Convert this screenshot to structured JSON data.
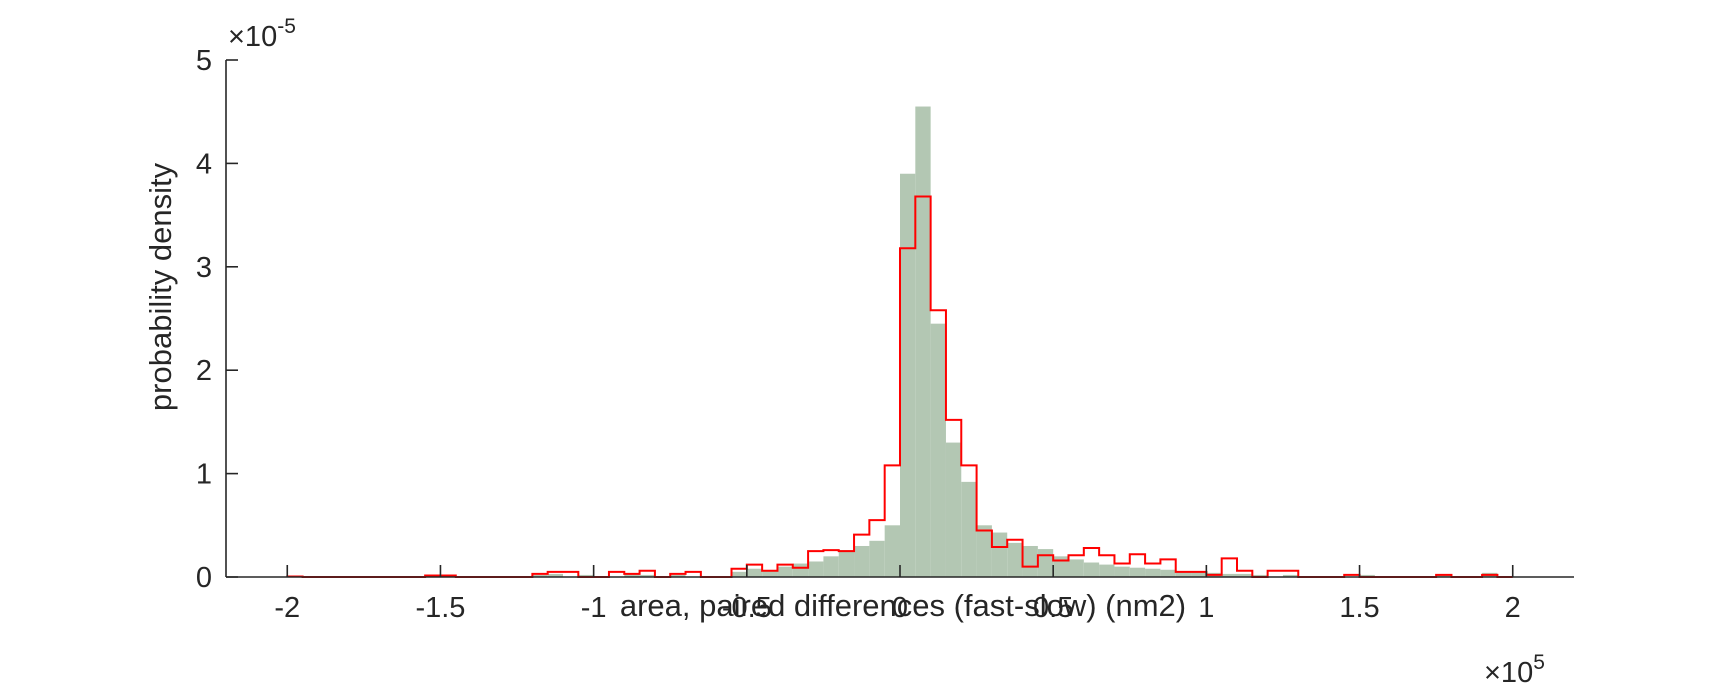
{
  "chart_data": {
    "type": "histogram",
    "xlabel": "area, paired differences (fast-slow) (nm2)",
    "ylabel": "probability density",
    "x_multiplier_base": "×10",
    "x_multiplier_exp": "5",
    "y_multiplier_base": "×10",
    "y_multiplier_exp": "-5",
    "x_scale": 100000,
    "y_scale": 1e-05,
    "xlim": [
      -2.2,
      2.2
    ],
    "ylim": [
      0,
      5
    ],
    "xticks": [
      -2,
      -1.5,
      -1,
      -0.5,
      0,
      0.5,
      1,
      1.5,
      2
    ],
    "xtick_labels": [
      "-2",
      "-1.5",
      "-1",
      "-0.5",
      "0",
      "0.5",
      "1",
      "1.5",
      "2"
    ],
    "yticks": [
      0,
      1,
      2,
      3,
      4,
      5
    ],
    "ytick_labels": [
      "0",
      "1",
      "2",
      "3",
      "4",
      "5"
    ],
    "bin_width": 0.05,
    "grid": false,
    "colors": {
      "bar_fill": "#b3c7b3",
      "step_line": "#ff0000",
      "axis": "#262626"
    },
    "series": [
      {
        "style": "filled-bars",
        "bins": [
          [
            -1.55,
            0.02
          ],
          [
            -1.2,
            0.02
          ],
          [
            -1.15,
            0.03
          ],
          [
            -1.05,
            0.02
          ],
          [
            -0.9,
            0.03
          ],
          [
            -0.85,
            0.02
          ],
          [
            -0.75,
            0.02
          ],
          [
            -0.55,
            0.05
          ],
          [
            -0.5,
            0.08
          ],
          [
            -0.45,
            0.06
          ],
          [
            -0.4,
            0.1
          ],
          [
            -0.35,
            0.13
          ],
          [
            -0.3,
            0.15
          ],
          [
            -0.25,
            0.2
          ],
          [
            -0.2,
            0.26
          ],
          [
            -0.15,
            0.3
          ],
          [
            -0.1,
            0.35
          ],
          [
            -0.05,
            0.5
          ],
          [
            0.0,
            3.9
          ],
          [
            0.05,
            4.55
          ],
          [
            0.1,
            2.45
          ],
          [
            0.15,
            1.3
          ],
          [
            0.2,
            0.92
          ],
          [
            0.25,
            0.5
          ],
          [
            0.3,
            0.43
          ],
          [
            0.35,
            0.33
          ],
          [
            0.4,
            0.3
          ],
          [
            0.45,
            0.27
          ],
          [
            0.5,
            0.2
          ],
          [
            0.55,
            0.17
          ],
          [
            0.6,
            0.14
          ],
          [
            0.65,
            0.12
          ],
          [
            0.7,
            0.1
          ],
          [
            0.75,
            0.09
          ],
          [
            0.8,
            0.08
          ],
          [
            0.85,
            0.07
          ],
          [
            0.9,
            0.05
          ],
          [
            0.95,
            0.05
          ],
          [
            1.0,
            0.04
          ],
          [
            1.05,
            0.03
          ],
          [
            1.1,
            0.03
          ],
          [
            1.15,
            0.02
          ],
          [
            1.25,
            0.02
          ],
          [
            1.5,
            0.02
          ],
          [
            1.75,
            0.02
          ],
          [
            1.9,
            0.04
          ]
        ]
      },
      {
        "style": "step-outline",
        "bins": [
          [
            -2.0,
            0.005
          ],
          [
            -1.55,
            0.015
          ],
          [
            -1.5,
            0.015
          ],
          [
            -1.2,
            0.03
          ],
          [
            -1.15,
            0.05
          ],
          [
            -1.1,
            0.05
          ],
          [
            -1.05,
            0.0
          ],
          [
            -0.95,
            0.05
          ],
          [
            -0.9,
            0.03
          ],
          [
            -0.85,
            0.06
          ],
          [
            -0.8,
            0.0
          ],
          [
            -0.75,
            0.03
          ],
          [
            -0.7,
            0.05
          ],
          [
            -0.55,
            0.08
          ],
          [
            -0.5,
            0.12
          ],
          [
            -0.45,
            0.06
          ],
          [
            -0.4,
            0.12
          ],
          [
            -0.35,
            0.09
          ],
          [
            -0.3,
            0.25
          ],
          [
            -0.25,
            0.26
          ],
          [
            -0.2,
            0.25
          ],
          [
            -0.15,
            0.41
          ],
          [
            -0.1,
            0.55
          ],
          [
            -0.05,
            1.08
          ],
          [
            0.0,
            3.18
          ],
          [
            0.05,
            3.68
          ],
          [
            0.1,
            2.58
          ],
          [
            0.15,
            1.52
          ],
          [
            0.2,
            1.08
          ],
          [
            0.25,
            0.45
          ],
          [
            0.3,
            0.29
          ],
          [
            0.35,
            0.36
          ],
          [
            0.4,
            0.1
          ],
          [
            0.45,
            0.21
          ],
          [
            0.5,
            0.16
          ],
          [
            0.55,
            0.21
          ],
          [
            0.6,
            0.28
          ],
          [
            0.65,
            0.21
          ],
          [
            0.7,
            0.13
          ],
          [
            0.75,
            0.22
          ],
          [
            0.8,
            0.13
          ],
          [
            0.85,
            0.17
          ],
          [
            0.9,
            0.05
          ],
          [
            0.95,
            0.05
          ],
          [
            1.0,
            0.02
          ],
          [
            1.05,
            0.18
          ],
          [
            1.1,
            0.06
          ],
          [
            1.15,
            0.0
          ],
          [
            1.2,
            0.06
          ],
          [
            1.25,
            0.06
          ],
          [
            1.3,
            0.0
          ],
          [
            1.45,
            0.02
          ],
          [
            1.75,
            0.02
          ],
          [
            1.8,
            0.0
          ],
          [
            1.9,
            0.02
          ]
        ]
      }
    ]
  }
}
